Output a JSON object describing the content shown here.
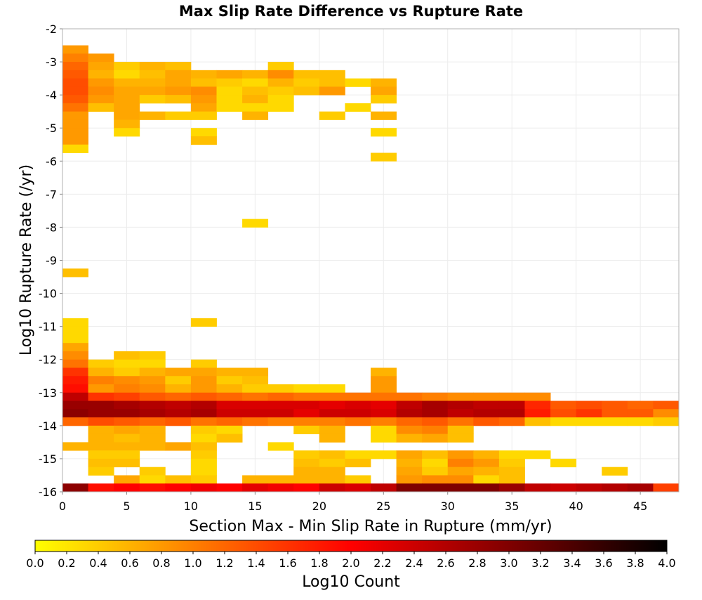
{
  "chart_data": {
    "type": "heatmap",
    "title": "Max Slip Rate Difference vs Rupture Rate",
    "xlabel": "Section Max - Min Slip Rate in Rupture (mm/yr)",
    "ylabel": "Log10 Rupture Rate (/yr)",
    "xlim": [
      0,
      48
    ],
    "ylim": [
      -16,
      -2
    ],
    "x_ticks": [
      0,
      5,
      10,
      15,
      20,
      25,
      30,
      35,
      40,
      45
    ],
    "y_ticks": [
      -2,
      -3,
      -4,
      -5,
      -6,
      -7,
      -8,
      -9,
      -10,
      -11,
      -12,
      -13,
      -14,
      -15,
      -16
    ],
    "x_bin_width": 2,
    "y_bin_width": 0.25,
    "grid": true,
    "colorbar": {
      "label": "Log10 Count",
      "min": 0.0,
      "max": 4.0,
      "ticks": [
        "0.0",
        "0.2",
        "0.4",
        "0.6",
        "0.8",
        "1.0",
        "1.2",
        "1.4",
        "1.6",
        "1.8",
        "2.0",
        "2.2",
        "2.4",
        "2.6",
        "2.8",
        "3.0",
        "3.2",
        "3.4",
        "3.6",
        "3.8",
        "4.0"
      ],
      "colors": [
        "#ffff00",
        "#ff0000",
        "#000000"
      ],
      "stops": [
        0,
        0.5,
        1
      ]
    },
    "cell_data_description": "each row: [y bin lower edge (log10 rate), then per x bin starting at 0 with width 2: log10 count or null if empty]",
    "cells": [
      [
        -2.75,
        0.8,
        null,
        null,
        null,
        null,
        null,
        null,
        null,
        null,
        null,
        null,
        null,
        null,
        null,
        null,
        null,
        null,
        null,
        null,
        null,
        null,
        null,
        null,
        null
      ],
      [
        -3.0,
        1.0,
        0.8,
        null,
        null,
        null,
        null,
        null,
        null,
        null,
        null,
        null,
        null,
        null,
        null,
        null,
        null,
        null,
        null,
        null,
        null,
        null,
        null,
        null,
        null
      ],
      [
        -3.25,
        1.2,
        0.7,
        0.4,
        0.6,
        0.5,
        null,
        null,
        null,
        0.4,
        null,
        null,
        null,
        null,
        null,
        null,
        null,
        null,
        null,
        null,
        null,
        null,
        null,
        null,
        null
      ],
      [
        -3.5,
        1.3,
        0.6,
        0.3,
        0.5,
        0.7,
        0.6,
        0.7,
        0.6,
        0.9,
        0.5,
        0.5,
        null,
        null,
        null,
        null,
        null,
        null,
        null,
        null,
        null,
        null,
        null,
        null,
        null
      ],
      [
        -3.75,
        1.4,
        0.8,
        0.6,
        0.6,
        0.7,
        0.5,
        0.4,
        0.3,
        0.6,
        0.4,
        0.5,
        0.3,
        0.6,
        null,
        null,
        null,
        null,
        null,
        null,
        null,
        null,
        null,
        null,
        null
      ],
      [
        -4.0,
        1.4,
        0.9,
        0.7,
        0.7,
        0.8,
        0.9,
        0.3,
        0.5,
        0.4,
        0.5,
        0.8,
        null,
        0.7,
        null,
        null,
        null,
        null,
        null,
        null,
        null,
        null,
        null,
        null,
        null
      ],
      [
        -4.25,
        1.3,
        0.8,
        0.7,
        0.4,
        0.5,
        0.8,
        0.3,
        0.6,
        0.3,
        null,
        null,
        null,
        0.4,
        null,
        null,
        null,
        null,
        null,
        null,
        null,
        null,
        null,
        null,
        null
      ],
      [
        -4.5,
        1.1,
        0.5,
        0.7,
        null,
        null,
        0.7,
        0.3,
        0.3,
        0.3,
        null,
        null,
        0.3,
        null,
        null,
        null,
        null,
        null,
        null,
        null,
        null,
        null,
        null,
        null,
        null
      ],
      [
        -4.75,
        0.8,
        null,
        0.7,
        0.6,
        0.4,
        0.4,
        null,
        0.6,
        null,
        null,
        0.4,
        null,
        0.6,
        null,
        null,
        null,
        null,
        null,
        null,
        null,
        null,
        null,
        null,
        null
      ],
      [
        -5.0,
        0.8,
        null,
        0.6,
        null,
        null,
        null,
        null,
        null,
        null,
        null,
        null,
        null,
        null,
        null,
        null,
        null,
        null,
        null,
        null,
        null,
        null,
        null,
        null,
        null
      ],
      [
        -5.25,
        0.8,
        null,
        0.3,
        null,
        null,
        0.3,
        null,
        null,
        null,
        null,
        null,
        null,
        0.3,
        null,
        null,
        null,
        null,
        null,
        null,
        null,
        null,
        null,
        null,
        null
      ],
      [
        -5.5,
        0.8,
        null,
        null,
        null,
        null,
        0.5,
        null,
        null,
        null,
        null,
        null,
        null,
        null,
        null,
        null,
        null,
        null,
        null,
        null,
        null,
        null,
        null,
        null,
        null
      ],
      [
        -5.75,
        0.3,
        null,
        null,
        null,
        null,
        null,
        null,
        null,
        null,
        null,
        null,
        null,
        null,
        null,
        null,
        null,
        null,
        null,
        null,
        null,
        null,
        null,
        null,
        null
      ],
      [
        -6.0,
        null,
        null,
        null,
        null,
        null,
        null,
        null,
        null,
        null,
        null,
        null,
        null,
        0.4,
        null,
        null,
        null,
        null,
        null,
        null,
        null,
        null,
        null,
        null,
        null
      ],
      [
        -8.0,
        null,
        null,
        null,
        null,
        null,
        null,
        null,
        0.3,
        null,
        null,
        null,
        null,
        null,
        null,
        null,
        null,
        null,
        null,
        null,
        null,
        null,
        null,
        null,
        null
      ],
      [
        -9.5,
        0.5,
        null,
        null,
        null,
        null,
        null,
        null,
        null,
        null,
        null,
        null,
        null,
        null,
        null,
        null,
        null,
        null,
        null,
        null,
        null,
        null,
        null,
        null,
        null
      ],
      [
        -11.0,
        0.3,
        null,
        null,
        null,
        null,
        0.4,
        null,
        null,
        null,
        null,
        null,
        null,
        null,
        null,
        null,
        null,
        null,
        null,
        null,
        null,
        null,
        null,
        null,
        null
      ],
      [
        -11.25,
        0.3,
        null,
        null,
        null,
        null,
        null,
        null,
        null,
        null,
        null,
        null,
        null,
        null,
        null,
        null,
        null,
        null,
        null,
        null,
        null,
        null,
        null,
        null,
        null
      ],
      [
        -11.5,
        0.3,
        null,
        null,
        null,
        null,
        null,
        null,
        null,
        null,
        null,
        null,
        null,
        null,
        null,
        null,
        null,
        null,
        null,
        null,
        null,
        null,
        null,
        null,
        null
      ],
      [
        -11.75,
        0.7,
        null,
        null,
        null,
        null,
        null,
        null,
        null,
        null,
        null,
        null,
        null,
        null,
        null,
        null,
        null,
        null,
        null,
        null,
        null,
        null,
        null,
        null,
        null
      ],
      [
        -12.0,
        0.9,
        null,
        0.5,
        0.4,
        null,
        null,
        null,
        null,
        null,
        null,
        null,
        null,
        null,
        null,
        null,
        null,
        null,
        null,
        null,
        null,
        null,
        null,
        null,
        null
      ],
      [
        -12.25,
        1.1,
        0.4,
        0.3,
        0.3,
        null,
        0.4,
        null,
        null,
        null,
        null,
        null,
        null,
        null,
        null,
        null,
        null,
        null,
        null,
        null,
        null,
        null,
        null,
        null,
        null
      ],
      [
        -12.5,
        1.6,
        0.6,
        0.4,
        0.6,
        0.7,
        0.7,
        0.6,
        0.6,
        null,
        null,
        null,
        null,
        0.6,
        null,
        null,
        null,
        null,
        null,
        null,
        null,
        null,
        null,
        null,
        null
      ],
      [
        -12.75,
        1.8,
        1.0,
        0.9,
        0.8,
        0.4,
        0.8,
        0.4,
        0.5,
        null,
        null,
        null,
        null,
        0.8,
        null,
        null,
        null,
        null,
        null,
        null,
        null,
        null,
        null,
        null,
        null
      ],
      [
        -13.0,
        1.9,
        0.8,
        1.0,
        0.9,
        0.6,
        0.8,
        0.6,
        0.4,
        0.4,
        0.3,
        0.3,
        null,
        0.8,
        null,
        null,
        null,
        null,
        null,
        null,
        null,
        null,
        null,
        null,
        null
      ],
      [
        -13.25,
        2.5,
        1.6,
        1.5,
        1.3,
        1.2,
        1.3,
        1.2,
        1.1,
        1.2,
        1.1,
        1.1,
        1.1,
        1.1,
        1.1,
        1.0,
        0.9,
        0.9,
        0.9,
        0.9,
        null,
        null,
        null,
        null,
        null
      ],
      [
        -13.5,
        2.8,
        2.8,
        2.7,
        2.6,
        2.5,
        2.6,
        2.3,
        2.3,
        2.3,
        2.3,
        2.2,
        2.3,
        2.2,
        2.5,
        2.7,
        2.6,
        2.5,
        2.5,
        1.7,
        1.3,
        1.4,
        1.3,
        1.2,
        1.3
      ],
      [
        -13.75,
        2.9,
        2.8,
        2.8,
        2.7,
        2.6,
        2.7,
        2.4,
        2.4,
        2.4,
        2.2,
        2.4,
        2.4,
        2.3,
        2.6,
        2.7,
        2.5,
        2.6,
        2.6,
        1.8,
        1.4,
        1.6,
        1.3,
        1.3,
        0.9
      ],
      [
        -14.0,
        1.2,
        1.4,
        1.3,
        1.2,
        1.3,
        1.1,
        1.2,
        1.1,
        1.0,
        1.0,
        1.0,
        1.1,
        1.0,
        1.2,
        1.3,
        1.1,
        1.3,
        1.2,
        0.5,
        0.3,
        0.3,
        0.3,
        0.3,
        0.4
      ],
      [
        -14.25,
        null,
        0.6,
        0.7,
        0.6,
        null,
        0.4,
        0.3,
        null,
        null,
        0.4,
        0.6,
        null,
        0.3,
        0.9,
        1.0,
        0.5,
        null,
        null,
        null,
        null,
        null,
        null,
        null,
        null
      ],
      [
        -14.5,
        null,
        0.6,
        0.5,
        0.6,
        null,
        0.3,
        0.5,
        null,
        null,
        null,
        0.6,
        null,
        0.3,
        0.6,
        0.7,
        0.5,
        null,
        null,
        null,
        null,
        null,
        null,
        null,
        null
      ],
      [
        -14.75,
        0.6,
        0.6,
        0.6,
        0.6,
        0.7,
        0.5,
        null,
        null,
        0.3,
        null,
        null,
        null,
        null,
        null,
        null,
        null,
        null,
        null,
        null,
        null,
        null,
        null,
        null,
        null
      ],
      [
        -15.0,
        null,
        0.4,
        0.4,
        null,
        null,
        0.4,
        null,
        null,
        null,
        0.4,
        0.5,
        0.3,
        0.3,
        0.7,
        0.5,
        0.8,
        0.6,
        0.3,
        0.3,
        null,
        null,
        null,
        null,
        null
      ],
      [
        -15.25,
        null,
        0.5,
        0.5,
        null,
        null,
        0.3,
        null,
        null,
        null,
        0.5,
        0.4,
        0.5,
        null,
        0.6,
        0.3,
        1.0,
        0.8,
        0.4,
        null,
        0.3,
        null,
        null,
        null,
        null
      ],
      [
        -15.5,
        null,
        0.4,
        null,
        0.4,
        null,
        0.3,
        null,
        null,
        null,
        0.6,
        0.6,
        null,
        null,
        0.7,
        0.4,
        0.7,
        0.6,
        0.5,
        null,
        null,
        null,
        0.4,
        null,
        null
      ],
      [
        -15.75,
        null,
        null,
        0.7,
        0.3,
        0.5,
        0.4,
        null,
        0.6,
        0.6,
        0.6,
        0.6,
        0.4,
        null,
        0.8,
        0.9,
        0.9,
        0.3,
        0.5,
        null,
        null,
        null,
        null,
        null,
        null
      ],
      [
        -16.0,
        2.9,
        1.9,
        2.0,
        1.9,
        2.0,
        2.1,
        2.0,
        2.2,
        2.1,
        2.0,
        2.4,
        2.3,
        2.5,
        3.0,
        3.0,
        3.0,
        3.0,
        2.8,
        2.5,
        2.4,
        2.5,
        2.6,
        2.7,
        1.5
      ]
    ]
  }
}
